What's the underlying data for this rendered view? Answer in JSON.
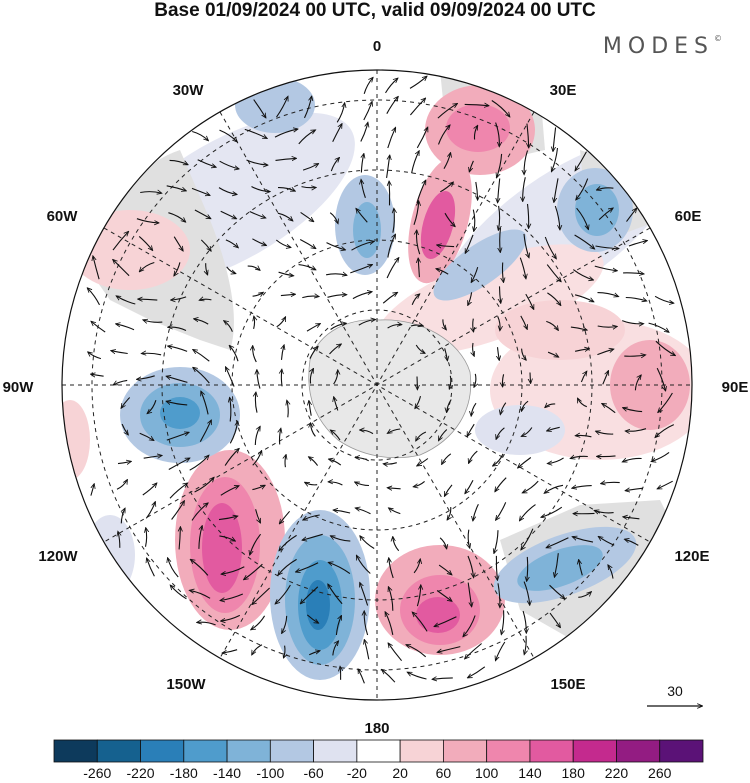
{
  "title": "Base 01/09/2024 00 UTC, valid 09/09/2024 00 UTC",
  "logo": "MODES",
  "logo_mark": "©",
  "longitude_labels": {
    "lon_0": "0",
    "lon_30e": "30E",
    "lon_60e": "60E",
    "lon_90e": "90E",
    "lon_120e": "120E",
    "lon_150e": "150E",
    "lon_180": "180",
    "lon_150w": "150W",
    "lon_120w": "120W",
    "lon_90w": "90W",
    "lon_60w": "60W",
    "lon_30w": "30W"
  },
  "vector_reference": "30",
  "colorbar": {
    "ticks": [
      "-260",
      "-220",
      "-180",
      "-140",
      "-100",
      "-60",
      "-20",
      "20",
      "60",
      "100",
      "140",
      "180",
      "220",
      "260"
    ],
    "colors": [
      "#0d3a5c",
      "#15618f",
      "#2a7fb8",
      "#4f9ccc",
      "#7fb3d8",
      "#b3c8e3",
      "#dfe2f0",
      "#ffffff",
      "#f7d3d6",
      "#f2acbb",
      "#ef86ad",
      "#e25aa0",
      "#c42a8e",
      "#931c82",
      "#5b1277"
    ]
  }
}
